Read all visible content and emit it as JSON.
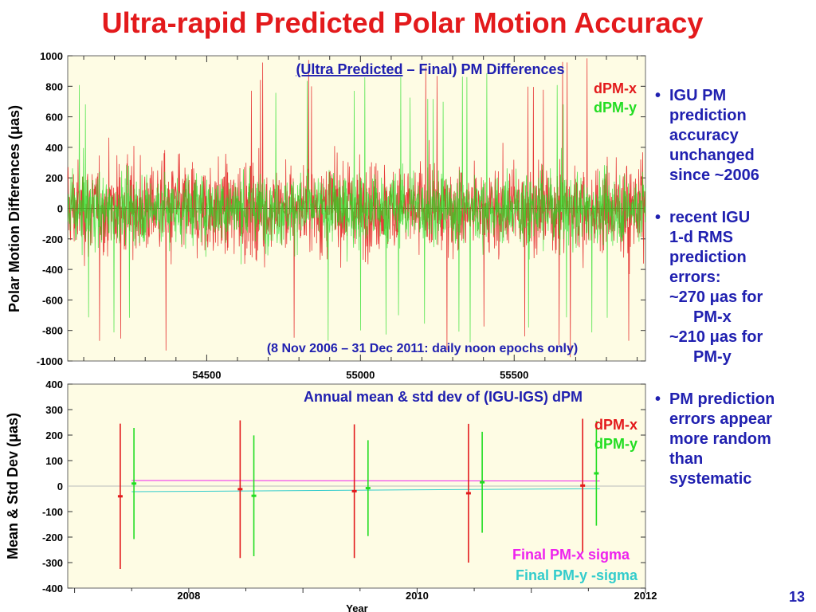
{
  "slide": {
    "title": "Ultra-rapid Predicted Polar Motion Accuracy",
    "page_number": "13",
    "bullets": [
      {
        "lines": [
          "IGU PM",
          "prediction",
          "accuracy",
          "unchanged",
          "since ~2006"
        ]
      },
      {
        "lines": [
          "recent IGU",
          "1-d RMS",
          "prediction",
          "errors:",
          "~270 μas for"
        ],
        "indent_lines": [
          "PM-x"
        ],
        "lines2": [
          "~210 μas for"
        ],
        "indent_lines2": [
          "PM-y"
        ]
      },
      {
        "lines": [
          "PM prediction",
          "errors appear",
          "more random",
          "than",
          "systematic"
        ]
      }
    ]
  },
  "chart_data": [
    {
      "type": "line",
      "title_parts": {
        "underlined": "(Ultra Predicted",
        "rest": " – Final) PM Differences"
      },
      "annotation": "(8 Nov 2006 – 31 Dec 2011: daily noon epochs only)",
      "ylabel": "Polar Motion Differences (μas)",
      "xlabel": "",
      "xlim": [
        54048,
        55927
      ],
      "ylim": [
        -1000,
        1000
      ],
      "yticks": [
        "1000",
        "800",
        "600",
        "400",
        "200",
        "0",
        "-200",
        "-400",
        "-600",
        "-800",
        "-1000"
      ],
      "xticks": [
        {
          "value": 54500,
          "label": "54500"
        },
        {
          "value": 55000,
          "label": "55000"
        },
        {
          "value": 55500,
          "label": "55500"
        }
      ],
      "series": [
        {
          "name": "dPM-x",
          "color": "#e31a1c",
          "typical_amplitude": 270,
          "max_abs": 1000
        },
        {
          "name": "dPM-y",
          "color": "#22dd22",
          "typical_amplitude": 210,
          "max_abs": 900
        }
      ]
    },
    {
      "type": "scatter",
      "title": "Annual mean & std dev of (IGU-IGS) dPM",
      "ylabel": "Mean & Std Dev (μas)",
      "xlabel": "Year",
      "xlim": [
        2006.94,
        2012.0
      ],
      "ylim": [
        -400,
        400
      ],
      "yticks": [
        "400",
        "300",
        "200",
        "100",
        "0",
        "-100",
        "-200",
        "-300",
        "-400"
      ],
      "xticks": [
        {
          "value": 2008,
          "label": "2008"
        },
        {
          "value": 2010,
          "label": "2010"
        },
        {
          "value": 2012,
          "label": "2012"
        }
      ],
      "series": [
        {
          "name": "dPM-x",
          "color": "#e31a1c",
          "x": [
            2007.4,
            2008.45,
            2009.45,
            2010.45,
            2011.45
          ],
          "mean": [
            -40,
            -12,
            -20,
            -28,
            2
          ],
          "std": [
            285,
            270,
            262,
            272,
            262
          ]
        },
        {
          "name": "dPM-y",
          "color": "#22dd22",
          "x": [
            2007.52,
            2008.57,
            2009.57,
            2010.57,
            2011.57
          ],
          "mean": [
            10,
            -38,
            -8,
            15,
            50
          ],
          "std": [
            218,
            237,
            188,
            198,
            205
          ]
        }
      ],
      "sigma_lines": [
        {
          "name": "Final PM-x sigma",
          "color": "#ee22ee",
          "x": [
            2007.5,
            2011.6
          ],
          "y": [
            22,
            20
          ]
        },
        {
          "name": "Final PM-y -sigma",
          "color": "#33cccc",
          "x": [
            2007.5,
            2011.6
          ],
          "y": [
            -22,
            -10
          ]
        }
      ]
    }
  ]
}
